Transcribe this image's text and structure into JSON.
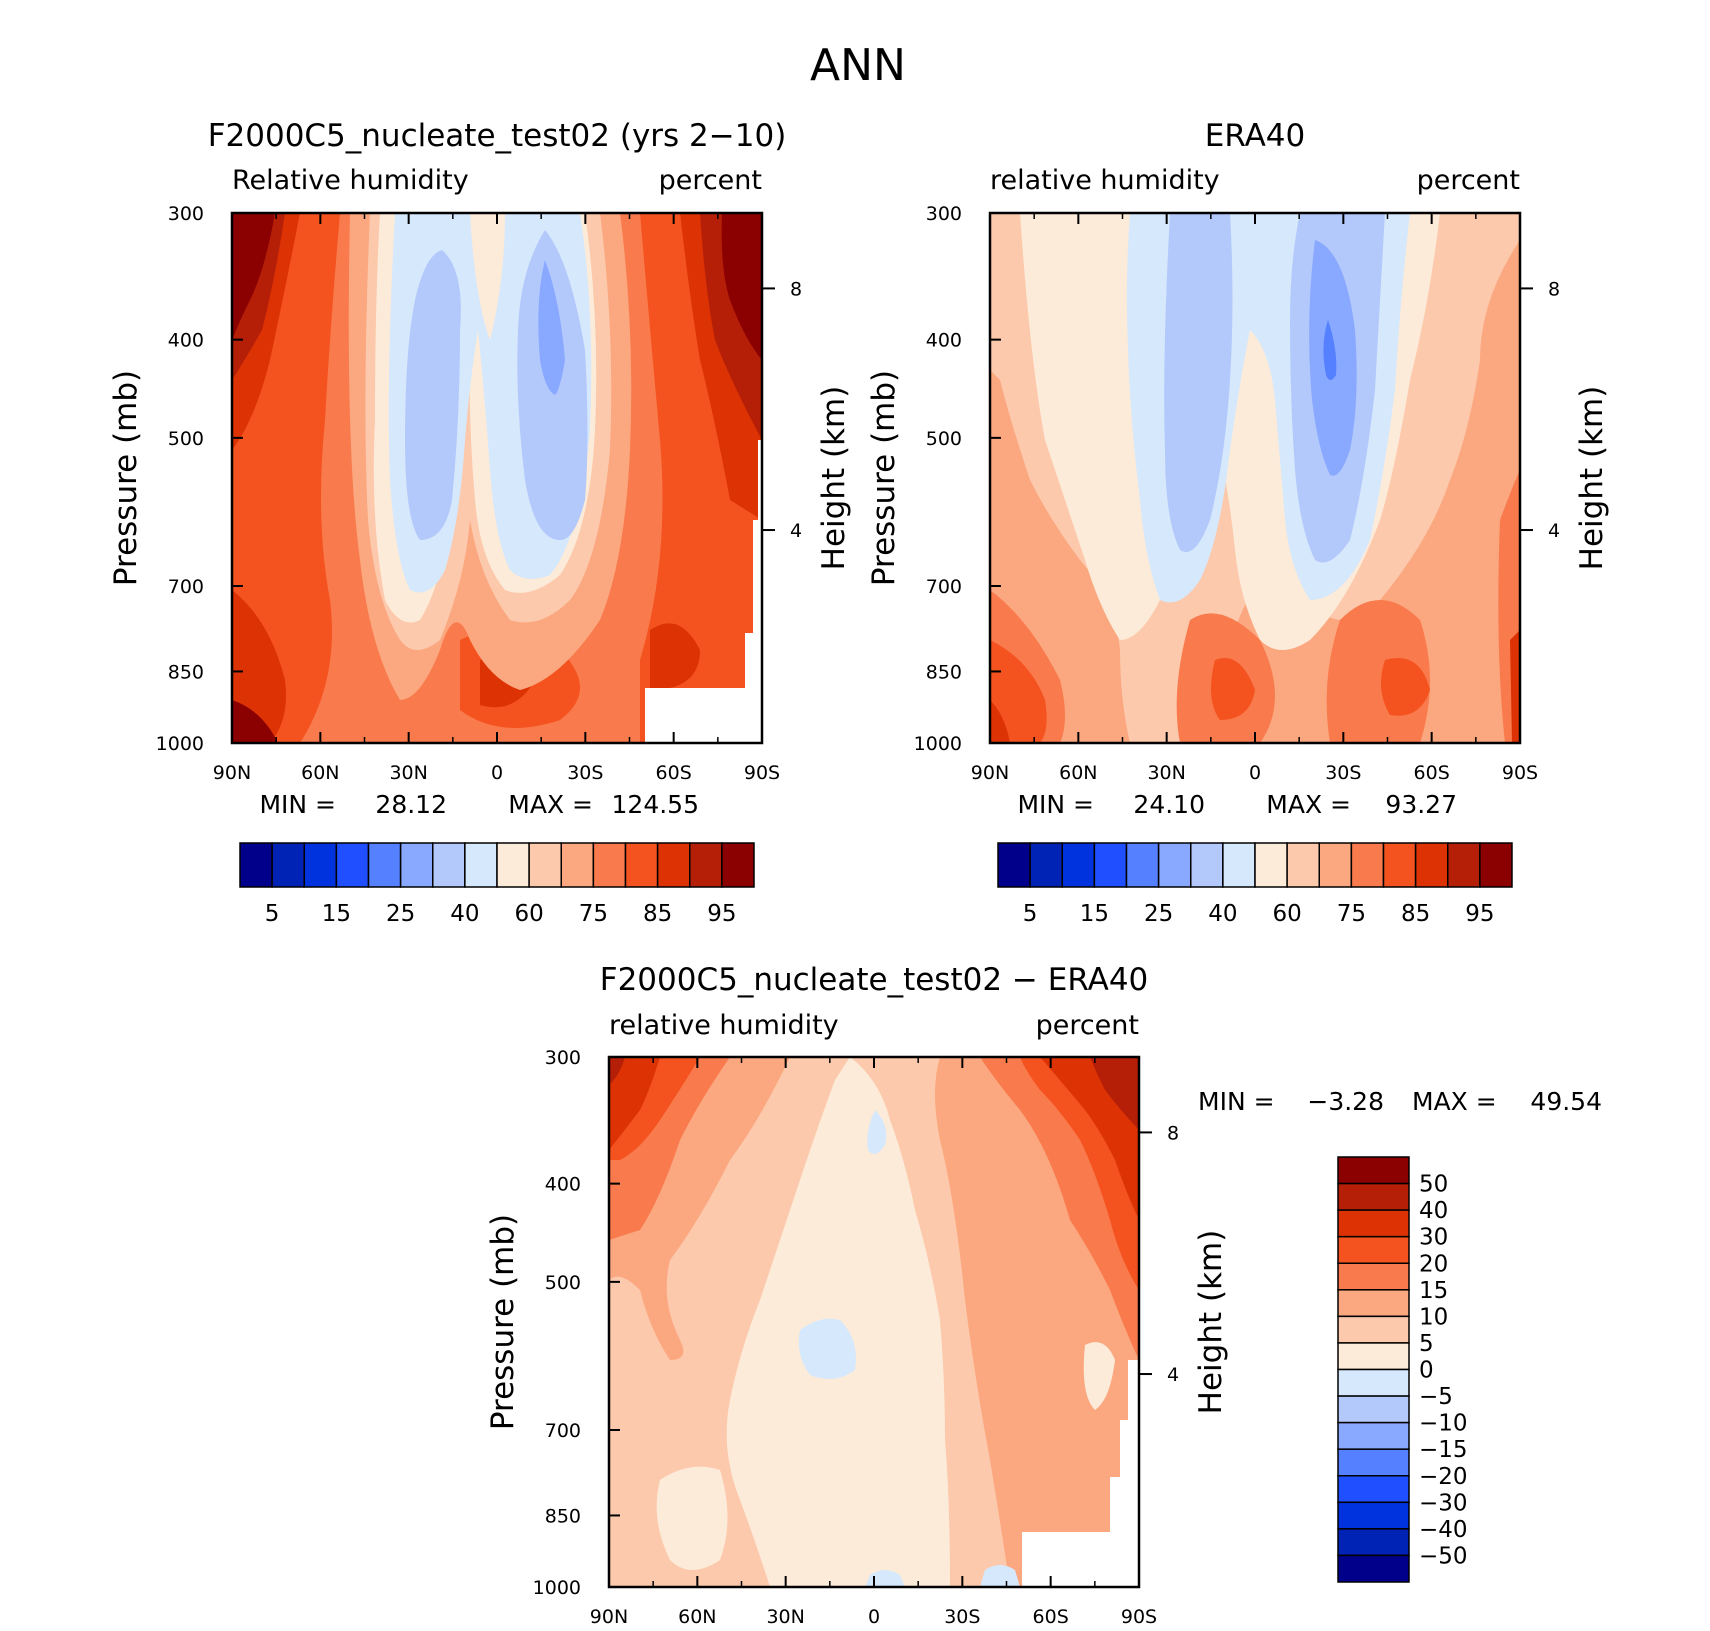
{
  "figure_title": "ANN",
  "chart_data": [
    {
      "type": "heatmap",
      "id": "model",
      "title": "F2000C5_nucleate_test02 (yrs 2−10)",
      "left_label": "Relative humidity",
      "right_label": "percent",
      "ylabel": "Pressure (mb)",
      "y2label": "Height (km)",
      "xlabel": "",
      "x_ticks": [
        "90N",
        "60N",
        "30N",
        "0",
        "30S",
        "60S",
        "90S"
      ],
      "x_values": [
        90,
        60,
        30,
        0,
        -30,
        -60,
        -90
      ],
      "y_ticks": [
        300,
        400,
        500,
        700,
        850,
        1000
      ],
      "y2_ticks": [
        "8",
        "4"
      ],
      "ylim": [
        1000,
        300
      ],
      "xlim": [
        90,
        -90
      ],
      "min_label": "MIN =",
      "min_value": "28.12",
      "max_label": "MAX =",
      "max_value": "124.55",
      "colorbar_labels": [
        "5",
        "15",
        "25",
        "40",
        "60",
        "75",
        "85",
        "95"
      ],
      "colorbar_colors": [
        "#00008b",
        "#0022b5",
        "#0033dd",
        "#1f4fff",
        "#5580ff",
        "#89a8ff",
        "#b4c9fb",
        "#d6e8fb",
        "#fdebd9",
        "#fcc9ac",
        "#fba77f",
        "#f97a4c",
        "#f4531f",
        "#dd3304",
        "#b51f08",
        "#8b0000"
      ]
    },
    {
      "type": "heatmap",
      "id": "obs",
      "title": "ERA40",
      "left_label": "relative humidity",
      "right_label": "percent",
      "ylabel": "Pressure (mb)",
      "y2label": "Height (km)",
      "xlabel": "",
      "x_ticks": [
        "90N",
        "60N",
        "30N",
        "0",
        "30S",
        "60S",
        "90S"
      ],
      "x_values": [
        90,
        60,
        30,
        0,
        -30,
        -60,
        -90
      ],
      "y_ticks": [
        300,
        400,
        500,
        700,
        850,
        1000
      ],
      "y2_ticks": [
        "8",
        "4"
      ],
      "ylim": [
        1000,
        300
      ],
      "xlim": [
        90,
        -90
      ],
      "min_label": "MIN =",
      "min_value": "24.10",
      "max_label": "MAX =",
      "max_value": "93.27",
      "colorbar_labels": [
        "5",
        "15",
        "25",
        "40",
        "60",
        "75",
        "85",
        "95"
      ],
      "colorbar_colors": [
        "#00008b",
        "#0022b5",
        "#0033dd",
        "#1f4fff",
        "#5580ff",
        "#89a8ff",
        "#b4c9fb",
        "#d6e8fb",
        "#fdebd9",
        "#fcc9ac",
        "#fba77f",
        "#f97a4c",
        "#f4531f",
        "#dd3304",
        "#b51f08",
        "#8b0000"
      ]
    },
    {
      "type": "heatmap",
      "id": "diff",
      "title": "F2000C5_nucleate_test02 − ERA40",
      "left_label": "relative humidity",
      "right_label": "percent",
      "ylabel": "Pressure (mb)",
      "y2label": "Height (km)",
      "xlabel": "",
      "x_ticks": [
        "90N",
        "60N",
        "30N",
        "0",
        "30S",
        "60S",
        "90S"
      ],
      "x_values": [
        90,
        60,
        30,
        0,
        -30,
        -60,
        -90
      ],
      "y_ticks": [
        300,
        400,
        500,
        700,
        850,
        1000
      ],
      "y2_ticks": [
        "8",
        "4"
      ],
      "ylim": [
        1000,
        300
      ],
      "xlim": [
        90,
        -90
      ],
      "min_label": "MIN =",
      "min_value": "−3.28",
      "max_label": "MAX =",
      "max_value": "49.54",
      "colorbar_labels": [
        "50",
        "40",
        "30",
        "20",
        "15",
        "10",
        "5",
        "0",
        "−5",
        "−10",
        "−15",
        "−20",
        "−30",
        "−40",
        "−50"
      ],
      "colorbar_colors": [
        "#8b0000",
        "#b51f08",
        "#dd3304",
        "#f4531f",
        "#f97a4c",
        "#fba77f",
        "#fcc9ac",
        "#fdebd9",
        "#d6e8fb",
        "#b4c9fb",
        "#89a8ff",
        "#5580ff",
        "#1f4fff",
        "#0033dd",
        "#0022b5",
        "#00008b"
      ]
    }
  ]
}
